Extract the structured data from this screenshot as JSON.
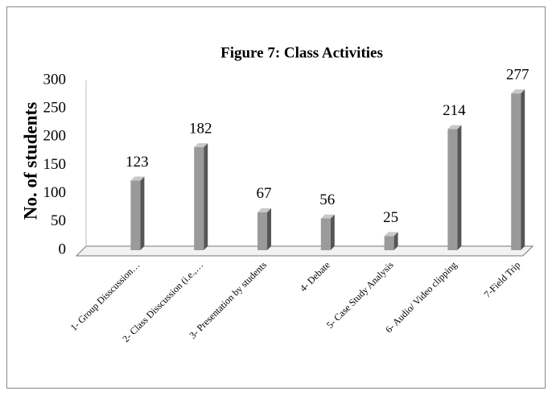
{
  "chart_data": {
    "type": "bar",
    "title": "Figure 7: Class Activities",
    "y_label": "No. of students",
    "categories": [
      "1- Group Disscussion…",
      "2- Class Disscussion (i.e.,…",
      "3- Presentation by students",
      "4- Debate",
      "5- Case Study Analysis",
      "6- Audio/ Video clipping",
      "7-Field Trip"
    ],
    "values": [
      123,
      182,
      67,
      56,
      25,
      214,
      277
    ],
    "color": "#9a9a9a",
    "ylim": [
      0,
      300
    ],
    "yticks": [
      0,
      50,
      100,
      150,
      200,
      250,
      300
    ]
  }
}
